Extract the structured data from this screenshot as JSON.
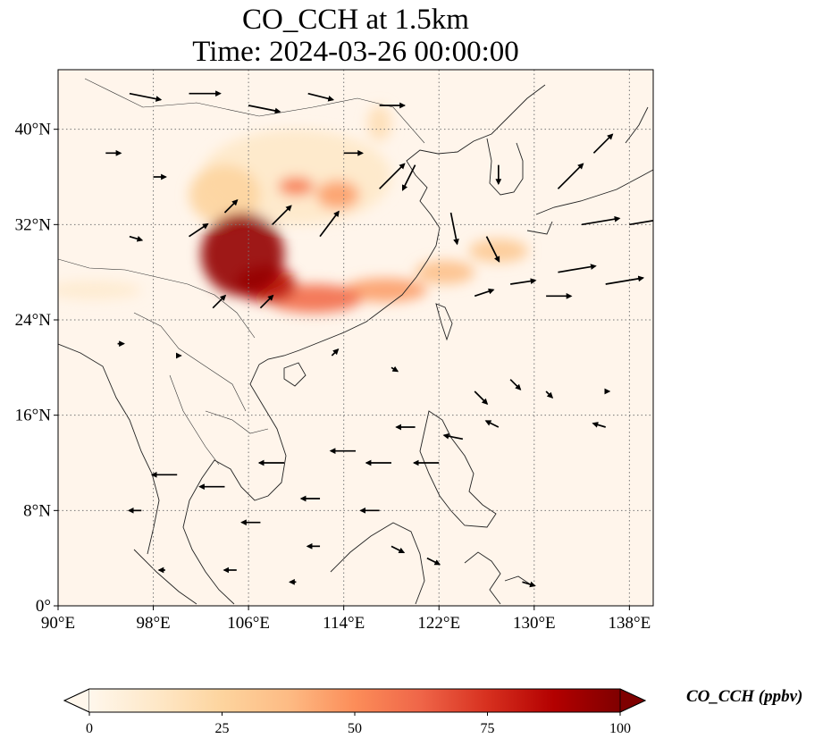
{
  "title_line1": "CO_CCH at 1.5km",
  "title_line2": "Time: 2024-03-26 00:00:00",
  "map": {
    "lon_range": [
      90,
      140
    ],
    "lat_range": [
      0,
      45
    ],
    "lon_ticks": [
      {
        "value": 90,
        "label": "90°E"
      },
      {
        "value": 98,
        "label": "98°E"
      },
      {
        "value": 106,
        "label": "106°E"
      },
      {
        "value": 114,
        "label": "114°E"
      },
      {
        "value": 122,
        "label": "122°E"
      },
      {
        "value": 130,
        "label": "130°E"
      },
      {
        "value": 138,
        "label": "138°E"
      }
    ],
    "lat_ticks": [
      {
        "value": 0,
        "label": "0°"
      },
      {
        "value": 8,
        "label": "8°N"
      },
      {
        "value": 16,
        "label": "16°N"
      },
      {
        "value": 24,
        "label": "24°N"
      },
      {
        "value": 32,
        "label": "32°N"
      },
      {
        "value": 40,
        "label": "40°N"
      }
    ],
    "gridlines": true,
    "background_color": "#fff5eb",
    "plume_regions_ppbv": [
      {
        "lon": 105.5,
        "lat": 29.5,
        "rlon": 3.5,
        "rlat": 3.5,
        "value": 95
      },
      {
        "lon": 107.5,
        "lat": 27.0,
        "rlon": 2.5,
        "rlat": 1.5,
        "value": 85
      },
      {
        "lon": 111.5,
        "lat": 25.8,
        "rlon": 4.0,
        "rlat": 1.2,
        "value": 60
      },
      {
        "lon": 117.5,
        "lat": 26.5,
        "rlon": 3.5,
        "rlat": 1.0,
        "value": 45
      },
      {
        "lon": 122.5,
        "lat": 28.0,
        "rlon": 2.5,
        "rlat": 1.0,
        "value": 35
      },
      {
        "lon": 127.0,
        "lat": 29.8,
        "rlon": 2.5,
        "rlat": 1.0,
        "value": 30
      },
      {
        "lon": 110.0,
        "lat": 35.2,
        "rlon": 1.5,
        "rlat": 0.8,
        "value": 55
      },
      {
        "lon": 113.5,
        "lat": 34.5,
        "rlon": 1.8,
        "rlat": 1.2,
        "value": 45
      },
      {
        "lon": 104.0,
        "lat": 34.5,
        "rlon": 3.0,
        "rlat": 2.5,
        "value": 25
      },
      {
        "lon": 110.0,
        "lat": 36.0,
        "rlon": 8.0,
        "rlat": 4.0,
        "value": 12
      },
      {
        "lon": 117.0,
        "lat": 40.5,
        "rlon": 1.0,
        "rlat": 1.5,
        "value": 18
      },
      {
        "lon": 93.0,
        "lat": 26.5,
        "rlon": 4.0,
        "rlat": 0.8,
        "value": 10
      }
    ],
    "wind_arrows": [
      {
        "lon": 96,
        "lat": 43,
        "u": 2.5,
        "v": -0.5
      },
      {
        "lon": 101,
        "lat": 43,
        "u": 2.5,
        "v": 0.0
      },
      {
        "lon": 106,
        "lat": 42,
        "u": 2.5,
        "v": -0.5
      },
      {
        "lon": 111,
        "lat": 43,
        "u": 2.0,
        "v": -0.5
      },
      {
        "lon": 117,
        "lat": 42,
        "u": 2.0,
        "v": 0.0
      },
      {
        "lon": 94,
        "lat": 38,
        "u": 1.2,
        "v": 0.0
      },
      {
        "lon": 98,
        "lat": 36,
        "u": 1.0,
        "v": 0.0
      },
      {
        "lon": 96,
        "lat": 31,
        "u": 1.0,
        "v": -0.3
      },
      {
        "lon": 101,
        "lat": 31,
        "u": 1.5,
        "v": 1.0
      },
      {
        "lon": 104,
        "lat": 33,
        "u": 1.0,
        "v": 1.0
      },
      {
        "lon": 108,
        "lat": 32,
        "u": 1.5,
        "v": 1.5
      },
      {
        "lon": 112,
        "lat": 31,
        "u": 1.5,
        "v": 2.0
      },
      {
        "lon": 114,
        "lat": 38,
        "u": 1.5,
        "v": 0.0
      },
      {
        "lon": 117,
        "lat": 35,
        "u": 2.0,
        "v": 2.0
      },
      {
        "lon": 120,
        "lat": 37,
        "u": -1.0,
        "v": -2.0
      },
      {
        "lon": 123,
        "lat": 33,
        "u": 0.5,
        "v": -2.5
      },
      {
        "lon": 126,
        "lat": 31,
        "u": 1.0,
        "v": -2.0
      },
      {
        "lon": 127,
        "lat": 37,
        "u": 0.0,
        "v": -1.5
      },
      {
        "lon": 132,
        "lat": 35,
        "u": 2.0,
        "v": 2.0
      },
      {
        "lon": 135,
        "lat": 38,
        "u": 1.5,
        "v": 1.5
      },
      {
        "lon": 134,
        "lat": 32,
        "u": 3.0,
        "v": 0.5
      },
      {
        "lon": 138,
        "lat": 32,
        "u": 3.0,
        "v": 0.5
      },
      {
        "lon": 132,
        "lat": 28,
        "u": 3.0,
        "v": 0.5
      },
      {
        "lon": 136,
        "lat": 27,
        "u": 3.0,
        "v": 0.5
      },
      {
        "lon": 128,
        "lat": 27,
        "u": 2.0,
        "v": 0.3
      },
      {
        "lon": 131,
        "lat": 26,
        "u": 2.0,
        "v": 0.0
      },
      {
        "lon": 125,
        "lat": 26,
        "u": 1.5,
        "v": 0.5
      },
      {
        "lon": 103,
        "lat": 25,
        "u": 1.0,
        "v": 1.0
      },
      {
        "lon": 107,
        "lat": 25,
        "u": 1.0,
        "v": 1.0
      },
      {
        "lon": 95,
        "lat": 22,
        "u": 0.5,
        "v": 0.0
      },
      {
        "lon": 100,
        "lat": 21,
        "u": 0.3,
        "v": 0.0
      },
      {
        "lon": 113,
        "lat": 21,
        "u": 0.5,
        "v": 0.5
      },
      {
        "lon": 118,
        "lat": 20,
        "u": 0.5,
        "v": -0.3
      },
      {
        "lon": 125,
        "lat": 18,
        "u": 1.0,
        "v": -1.0
      },
      {
        "lon": 128,
        "lat": 19,
        "u": 0.8,
        "v": -0.8
      },
      {
        "lon": 131,
        "lat": 18,
        "u": 0.5,
        "v": -0.5
      },
      {
        "lon": 136,
        "lat": 18,
        "u": 0.3,
        "v": 0.0
      },
      {
        "lon": 120,
        "lat": 15,
        "u": -1.5,
        "v": 0.0
      },
      {
        "lon": 124,
        "lat": 14,
        "u": -1.5,
        "v": 0.3
      },
      {
        "lon": 127,
        "lat": 15,
        "u": -1.0,
        "v": 0.5
      },
      {
        "lon": 136,
        "lat": 15,
        "u": -1.0,
        "v": 0.3
      },
      {
        "lon": 115,
        "lat": 13,
        "u": -2.0,
        "v": 0.0
      },
      {
        "lon": 118,
        "lat": 12,
        "u": -2.0,
        "v": 0.0
      },
      {
        "lon": 122,
        "lat": 12,
        "u": -2.0,
        "v": 0.0
      },
      {
        "lon": 109,
        "lat": 12,
        "u": -2.0,
        "v": 0.0
      },
      {
        "lon": 104,
        "lat": 10,
        "u": -2.0,
        "v": 0.0
      },
      {
        "lon": 100,
        "lat": 11,
        "u": -2.0,
        "v": 0.0
      },
      {
        "lon": 112,
        "lat": 9,
        "u": -1.5,
        "v": 0.0
      },
      {
        "lon": 117,
        "lat": 8,
        "u": -1.5,
        "v": 0.0
      },
      {
        "lon": 107,
        "lat": 7,
        "u": -1.5,
        "v": 0.0
      },
      {
        "lon": 97,
        "lat": 8,
        "u": -1.0,
        "v": 0.0
      },
      {
        "lon": 112,
        "lat": 5,
        "u": -1.0,
        "v": 0.0
      },
      {
        "lon": 118,
        "lat": 5,
        "u": 1.0,
        "v": -0.5
      },
      {
        "lon": 121,
        "lat": 4,
        "u": 1.0,
        "v": -0.5
      },
      {
        "lon": 105,
        "lat": 3,
        "u": -1.0,
        "v": 0.0
      },
      {
        "lon": 99,
        "lat": 3,
        "u": -0.5,
        "v": 0.0
      },
      {
        "lon": 129,
        "lat": 2,
        "u": 1.0,
        "v": -0.3
      },
      {
        "lon": 110,
        "lat": 2,
        "u": -0.5,
        "v": 0.0
      }
    ]
  },
  "colorbar": {
    "title": "CO_CCH (ppbv)",
    "min": 0,
    "max": 100,
    "ticks": [
      0,
      25,
      50,
      75,
      100
    ],
    "extend": "both",
    "colormap": "OrRd",
    "colors": [
      "#fff7ec",
      "#fee8c8",
      "#fdd49e",
      "#fdbb84",
      "#fc8d59",
      "#ef6548",
      "#d7301f",
      "#b30000",
      "#7f0000"
    ]
  }
}
